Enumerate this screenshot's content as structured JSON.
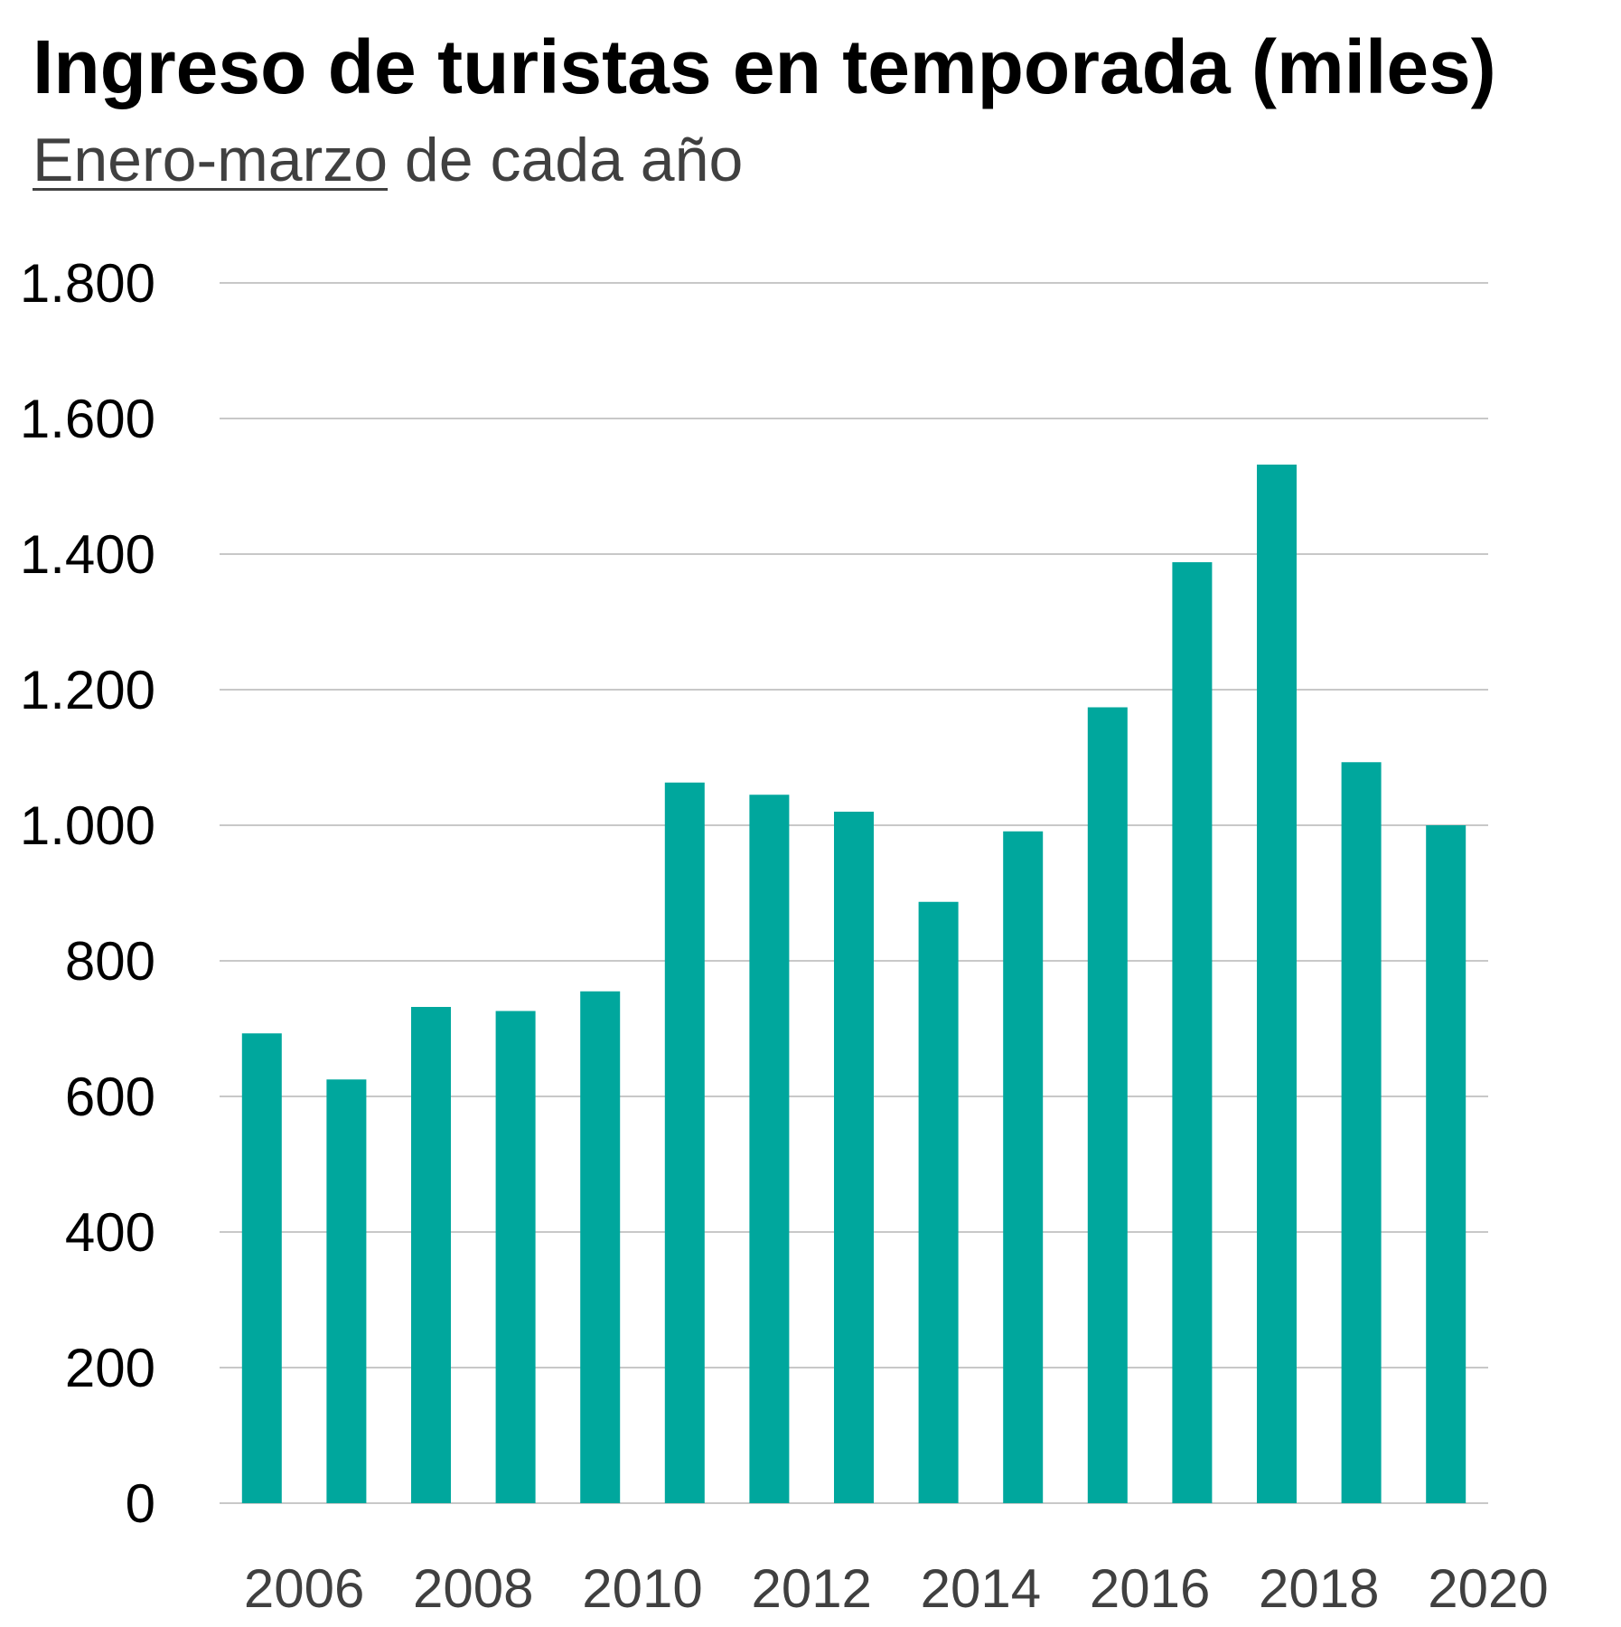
{
  "chart_data": {
    "type": "bar",
    "title": "Ingreso de turistas en temporada (miles)",
    "subtitle_underlined": "Enero-marzo",
    "subtitle_rest": " de cada año",
    "categories": [
      "2006",
      "2007",
      "2008",
      "2009",
      "2010",
      "2011",
      "2012",
      "2013",
      "2014",
      "2015",
      "2016",
      "2017",
      "2018",
      "2019",
      "2020"
    ],
    "x_tick_labels": [
      "2006",
      "2008",
      "2010",
      "2012",
      "2014",
      "2016",
      "2018",
      "2020"
    ],
    "series": [
      {
        "values": [
          693,
          625,
          732,
          726,
          755,
          1063,
          1045,
          1020,
          887,
          991,
          1174,
          1388,
          1532,
          1093,
          1000
        ]
      }
    ],
    "ylim": [
      0,
      1800
    ],
    "y_ticks": [
      0,
      200,
      400,
      600,
      800,
      1000,
      1200,
      1400,
      1600,
      1800
    ],
    "y_tick_labels": [
      "0",
      "200",
      "400",
      "600",
      "800",
      "1.000",
      "1.200",
      "1.400",
      "1.600",
      "1.800"
    ],
    "xlabel": "",
    "ylabel": "",
    "grid": true,
    "legend": "none",
    "colors": {
      "bar": "#00A79D",
      "grid": "#C8C8C8",
      "title": "#000000",
      "subtitle": "#404040",
      "x_tick": "#404040",
      "y_tick": "#000000"
    }
  }
}
